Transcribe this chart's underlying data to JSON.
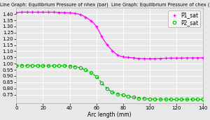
{
  "title": "Line Graph: Equilibrium Pressure of nhex (bar)  Line Graph: Equilibrium Pressure of chex (bar)",
  "xlabel": "Arc length (mm)",
  "xlim": [
    0,
    140
  ],
  "ylim": [
    0.68,
    1.45
  ],
  "yticks": [
    0.75,
    0.8,
    0.85,
    0.9,
    0.95,
    1.0,
    1.05,
    1.1,
    1.15,
    1.2,
    1.25,
    1.3,
    1.35,
    1.4
  ],
  "xticks": [
    0,
    20,
    40,
    60,
    80,
    100,
    120,
    140
  ],
  "p1_color": "#ff00ff",
  "p2_color": "#00bb00",
  "bg_color": "#e8e8e8",
  "grid_color": "#ffffff",
  "legend_labels": [
    "P1_sat",
    "P2_sat"
  ],
  "title_fontsize": 4.8,
  "axis_fontsize": 5.5,
  "tick_fontsize": 5,
  "legend_fontsize": 5.5,
  "p1_x": [
    0,
    4,
    8,
    12,
    16,
    20,
    24,
    28,
    32,
    36,
    40,
    44,
    48,
    52,
    56,
    60,
    64,
    68,
    72,
    76,
    80,
    84,
    88,
    92,
    96,
    100,
    104,
    108,
    112,
    116,
    120,
    124,
    128,
    132,
    136,
    140
  ],
  "p1_y": [
    1.41,
    1.415,
    1.415,
    1.415,
    1.415,
    1.415,
    1.415,
    1.415,
    1.413,
    1.412,
    1.41,
    1.405,
    1.395,
    1.375,
    1.345,
    1.3,
    1.22,
    1.155,
    1.105,
    1.07,
    1.055,
    1.05,
    1.045,
    1.042,
    1.04,
    1.04,
    1.04,
    1.042,
    1.044,
    1.045,
    1.045,
    1.045,
    1.046,
    1.046,
    1.047,
    1.047
  ],
  "p2_x": [
    0,
    4,
    8,
    12,
    16,
    20,
    24,
    28,
    32,
    36,
    40,
    44,
    48,
    52,
    56,
    60,
    64,
    68,
    72,
    76,
    80,
    84,
    88,
    92,
    96,
    100,
    104,
    108,
    112,
    116,
    120,
    124,
    128,
    132,
    136,
    140
  ],
  "p2_y": [
    0.983,
    0.985,
    0.985,
    0.983,
    0.982,
    0.982,
    0.982,
    0.982,
    0.982,
    0.982,
    0.98,
    0.975,
    0.965,
    0.948,
    0.925,
    0.895,
    0.845,
    0.8,
    0.77,
    0.755,
    0.745,
    0.735,
    0.728,
    0.722,
    0.718,
    0.715,
    0.713,
    0.712,
    0.712,
    0.711,
    0.711,
    0.711,
    0.711,
    0.711,
    0.711,
    0.711
  ]
}
